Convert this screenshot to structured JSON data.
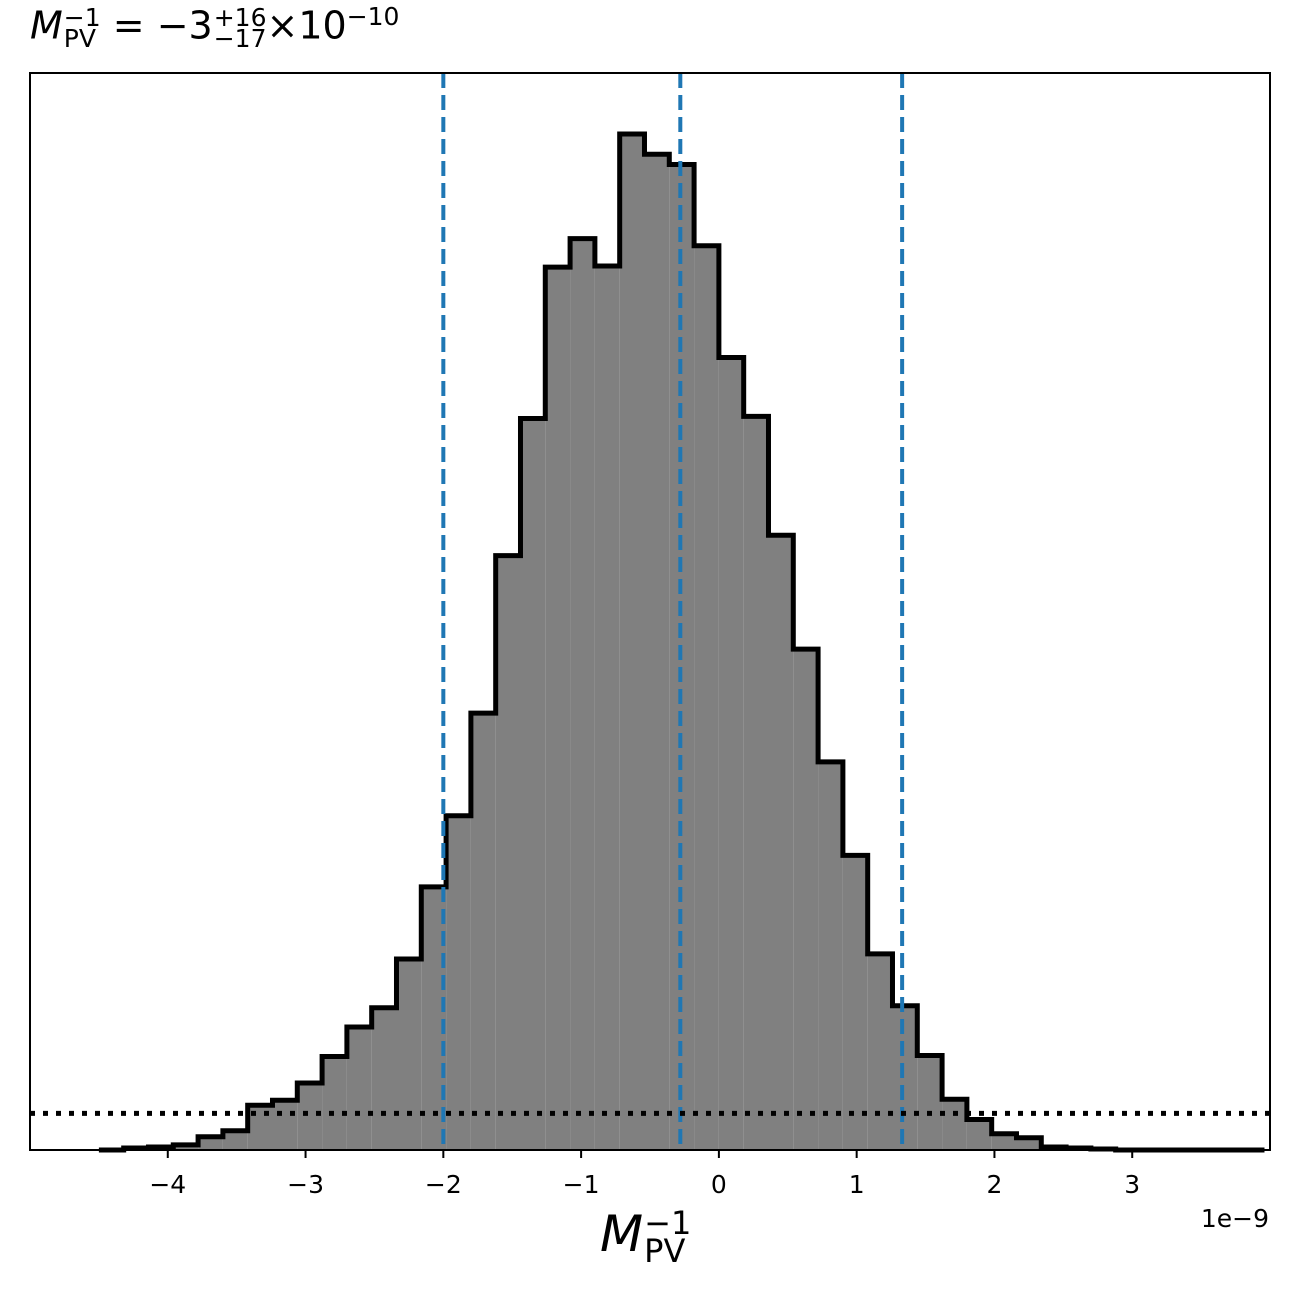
{
  "chart_data": {
    "type": "histogram",
    "title": {
      "symbol": "M",
      "symbol_sup": "−1",
      "symbol_sub": "PV",
      "equals": "=",
      "value": "−3",
      "upper": "+16",
      "lower": "−17",
      "times": "×",
      "power_base": "10",
      "power_exp": "−10"
    },
    "xlabel": {
      "symbol": "M",
      "sup": "−1",
      "sub": "PV"
    },
    "x_offset_text": "1e−9",
    "x_scale": 1e-09,
    "xlim": [
      -5.0,
      4.0
    ],
    "ylim": [
      0,
      1.06
    ],
    "x_ticks": [
      -4,
      -3,
      -2,
      -1,
      0,
      1,
      2,
      3
    ],
    "x_tick_labels": [
      "−4",
      "−3",
      "−2",
      "−1",
      "0",
      "1",
      "2",
      "3"
    ],
    "bin_edges": [
      -4.5,
      -4.32,
      -4.14,
      -3.96,
      -3.78,
      -3.6,
      -3.42,
      -3.24,
      -3.06,
      -2.88,
      -2.7,
      -2.52,
      -2.34,
      -2.16,
      -1.98,
      -1.8,
      -1.62,
      -1.44,
      -1.26,
      -1.08,
      -0.9,
      -0.72,
      -0.54,
      -0.36,
      -0.18,
      0.0,
      0.18,
      0.36,
      0.54,
      0.72,
      0.9,
      1.08,
      1.26,
      1.44,
      1.62,
      1.8,
      1.98,
      2.16,
      2.34,
      2.52,
      2.7,
      2.88,
      3.06,
      3.24,
      3.42,
      3.6,
      3.78,
      3.96
    ],
    "counts": [
      0.0,
      0.002,
      0.003,
      0.005,
      0.013,
      0.019,
      0.044,
      0.049,
      0.066,
      0.092,
      0.121,
      0.14,
      0.188,
      0.259,
      0.329,
      0.43,
      0.585,
      0.72,
      0.869,
      0.897,
      0.87,
      1.0,
      0.98,
      0.97,
      0.89,
      0.78,
      0.722,
      0.605,
      0.493,
      0.382,
      0.29,
      0.193,
      0.142,
      0.093,
      0.05,
      0.03,
      0.016,
      0.012,
      0.003,
      0.002,
      0.001,
      0.0,
      0.0,
      0.0,
      0.0,
      0.0,
      0.0
    ],
    "bar_fill": "#808080",
    "bar_edge": "#000000",
    "vlines": {
      "values": [
        -2.0,
        -0.28,
        1.33
      ],
      "color": "#1f77b4",
      "style": "dashed"
    },
    "hline": {
      "value": 0.036,
      "color": "#000000",
      "style": "dotted"
    },
    "grid": false,
    "y_ticks": false
  }
}
